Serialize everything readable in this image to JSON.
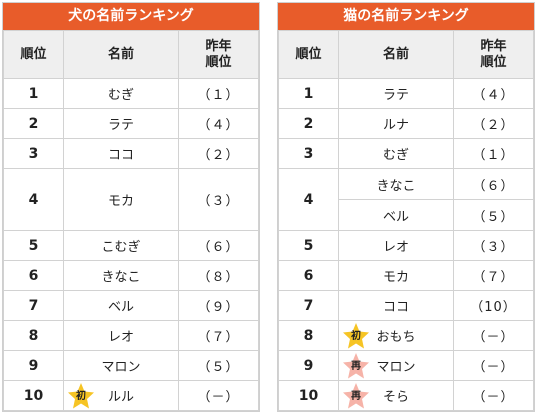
{
  "theme": {
    "title_bg": "#e85c2a",
    "header_bg": "#efefef",
    "badge_new": "#f6c424",
    "badge_re": "#f6b3a8"
  },
  "dog": {
    "title": "犬の名前ランキング",
    "headers": {
      "rank": "順位",
      "name": "名前",
      "prev_line1": "昨年",
      "prev_line2": "順位"
    },
    "rows": [
      {
        "rank": "1",
        "name": "むぎ",
        "prev": "（１）"
      },
      {
        "rank": "2",
        "name": "ラテ",
        "prev": "（４）"
      },
      {
        "rank": "3",
        "name": "ココ",
        "prev": "（２）"
      },
      {
        "rank": "4",
        "name": "モカ",
        "prev": "（３）"
      },
      {
        "rank": "5",
        "name": "こむぎ",
        "prev": "（６）"
      },
      {
        "rank": "6",
        "name": "きなこ",
        "prev": "（８）"
      },
      {
        "rank": "7",
        "name": "ベル",
        "prev": "（９）"
      },
      {
        "rank": "8",
        "name": "レオ",
        "prev": "（７）"
      },
      {
        "rank": "9",
        "name": "マロン",
        "prev": "（５）"
      },
      {
        "rank": "10",
        "name": "ルル",
        "prev": "（－）",
        "badge": "初"
      }
    ]
  },
  "cat": {
    "title": "猫の名前ランキング",
    "headers": {
      "rank": "順位",
      "name": "名前",
      "prev_line1": "昨年",
      "prev_line2": "順位"
    },
    "rows": [
      {
        "rank": "1",
        "name": "ラテ",
        "prev": "（４）"
      },
      {
        "rank": "2",
        "name": "ルナ",
        "prev": "（２）"
      },
      {
        "rank": "3",
        "name": "むぎ",
        "prev": "（１）"
      },
      {
        "rank": "4",
        "name": "きなこ",
        "prev": "（６）"
      },
      {
        "rank": "",
        "name": "ベル",
        "prev": "（５）"
      },
      {
        "rank": "5",
        "name": "レオ",
        "prev": "（３）"
      },
      {
        "rank": "6",
        "name": "モカ",
        "prev": "（７）"
      },
      {
        "rank": "7",
        "name": "ココ",
        "prev": "（10）"
      },
      {
        "rank": "8",
        "name": "おもち",
        "prev": "（－）",
        "badge": "初"
      },
      {
        "rank": "9",
        "name": "マロン",
        "prev": "（－）",
        "badge": "再"
      },
      {
        "rank": "10",
        "name": "そら",
        "prev": "（－）",
        "badge": "再"
      }
    ]
  }
}
